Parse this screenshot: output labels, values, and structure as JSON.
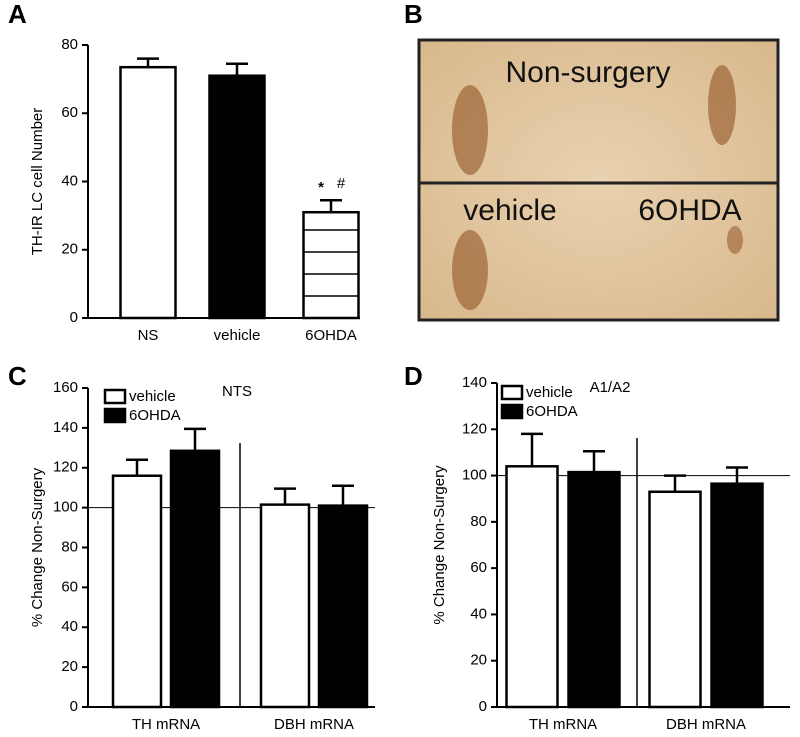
{
  "chart_data": [
    {
      "type": "bar",
      "label": "A",
      "ylabel": "TH-IR LC cell Number",
      "categories": [
        "NS",
        "vehicle",
        "6OHDA"
      ],
      "values": [
        73.5,
        71,
        31
      ],
      "errors": [
        2.5,
        3.5,
        3.5
      ],
      "colors": [
        "#ffffff",
        "#000000",
        "#ffffff"
      ],
      "hatch": [
        false,
        false,
        true
      ],
      "annotations": [
        "*",
        "#"
      ],
      "ylim": [
        0,
        80
      ],
      "yticks": [
        0,
        20,
        40,
        60,
        80
      ]
    },
    {
      "type": "grouped-bar",
      "label": "C",
      "subtitle": "NTS",
      "ylabel": "% Change Non-Surgery",
      "categories": [
        "TH mRNA",
        "DBH mRNA"
      ],
      "series": [
        {
          "name": "vehicle",
          "color": "#ffffff",
          "values": [
            116,
            101.5
          ],
          "errors": [
            8,
            8
          ]
        },
        {
          "name": "6OHDA",
          "color": "#000000",
          "values": [
            128.5,
            101
          ],
          "errors": [
            11,
            10
          ]
        }
      ],
      "refline": 100,
      "ylim": [
        0,
        160
      ],
      "yticks": [
        0,
        20,
        40,
        60,
        80,
        100,
        120,
        140,
        160
      ]
    },
    {
      "type": "grouped-bar",
      "label": "D",
      "subtitle": "A1/A2",
      "ylabel": "% Change Non-Surgery",
      "categories": [
        "TH mRNA",
        "DBH mRNA"
      ],
      "series": [
        {
          "name": "vehicle",
          "color": "#ffffff",
          "values": [
            104,
            93
          ],
          "errors": [
            14,
            7
          ]
        },
        {
          "name": "6OHDA",
          "color": "#000000",
          "values": [
            101.5,
            96.5
          ],
          "errors": [
            9,
            7
          ]
        }
      ],
      "refline": 100,
      "ylim": [
        0,
        140
      ],
      "yticks": [
        0,
        20,
        40,
        60,
        80,
        100,
        120,
        140
      ]
    }
  ],
  "image_panel": {
    "label": "B",
    "top_text": "Non-surgery",
    "bottom_left_text": "vehicle",
    "bottom_right_text": "6OHDA"
  }
}
